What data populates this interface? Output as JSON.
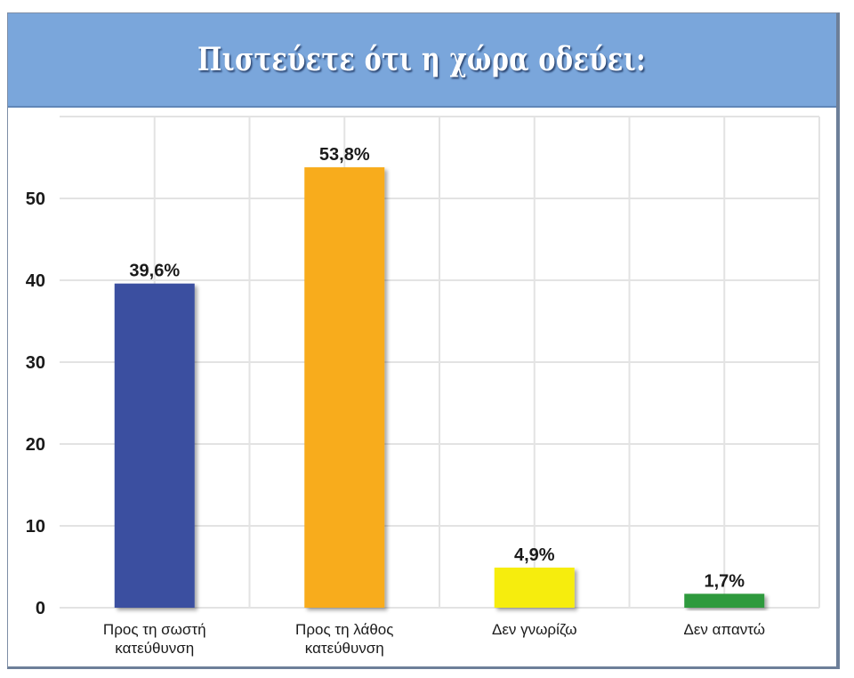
{
  "header": {
    "title": "Πιστεύετε ότι η χώρα οδεύει:"
  },
  "chart_data": {
    "type": "bar",
    "title": "Πιστεύετε ότι η χώρα οδεύει:",
    "categories": [
      [
        "Προς τη σωστή",
        "κατεύθυνση"
      ],
      [
        "Προς τη λάθος",
        "κατεύθυνση"
      ],
      [
        "Δεν γνωρίζω"
      ],
      [
        "Δεν απαντώ"
      ]
    ],
    "values": [
      39.6,
      53.8,
      4.9,
      1.7
    ],
    "value_labels": [
      "39,6%",
      "53,8%",
      "4,9%",
      "1,7%"
    ],
    "colors": [
      "#3b4fa0",
      "#f8ac1b",
      "#f6ed0a",
      "#2f9a3e"
    ],
    "yticks": [
      0,
      10,
      20,
      30,
      40,
      50
    ],
    "ylim": [
      0,
      60
    ],
    "grid": true,
    "legend": "none"
  }
}
